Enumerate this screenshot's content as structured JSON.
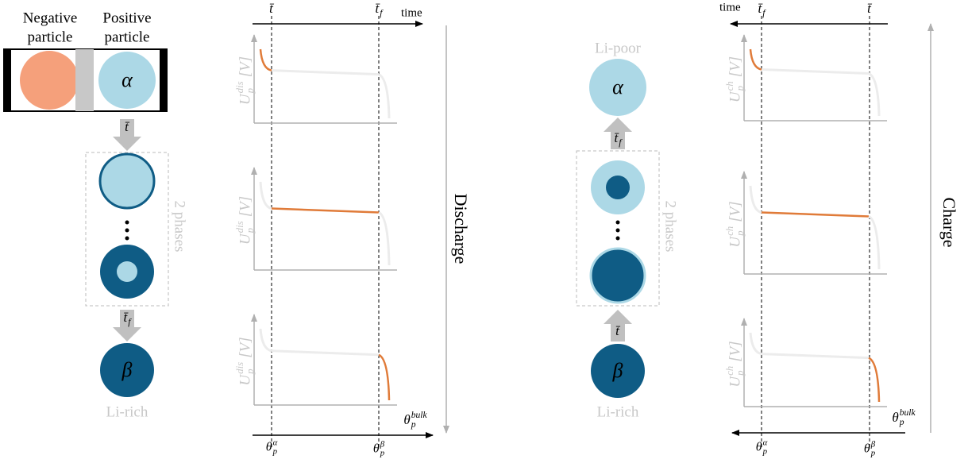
{
  "left": {
    "negative_label": [
      "Negative",
      "particle"
    ],
    "positive_label": [
      "Positive",
      "particle"
    ],
    "alpha": "α",
    "arrow_1": {
      "base": "t̄"
    },
    "phases": "2 phases",
    "arrow_2": {
      "base": "t̄",
      "sub": "f"
    },
    "beta": "β",
    "bottom_label": "Li-rich"
  },
  "discharge_plot": {
    "time": "time",
    "t_start": {
      "base": "t̄"
    },
    "t_end": {
      "base": "t̄",
      "sub": "f"
    },
    "y_labels": [
      {
        "base": "U",
        "sub": "p",
        "sup": "dis",
        "unit": "[V]"
      },
      {
        "base": "U",
        "sub": "p",
        "sup": "dis",
        "unit": "[V]"
      },
      {
        "base": "U",
        "sub": "p",
        "sup": "dis",
        "unit": "[V]"
      }
    ],
    "x_label": {
      "base": "θ",
      "sub": "p",
      "sup": "bulk"
    },
    "theta_alpha": {
      "base": "θ",
      "sub": "p",
      "sup": "α"
    },
    "theta_beta": {
      "base": "θ",
      "sub": "p",
      "sup": "β"
    },
    "direction": "Discharge"
  },
  "right": {
    "top_label": "Li-poor",
    "alpha": "α",
    "arrow_1": {
      "base": "t̄",
      "sub": "f"
    },
    "phases": "2 phases",
    "arrow_2": {
      "base": "t̄"
    },
    "beta": "β",
    "bottom_label": "Li-rich"
  },
  "charge_plot": {
    "time": "time",
    "t_start": {
      "base": "t̄",
      "sub": "f"
    },
    "t_end": {
      "base": "t̄"
    },
    "y_labels": [
      {
        "base": "U",
        "sub": "p",
        "sup": "ch",
        "unit": "[V]"
      },
      {
        "base": "U",
        "sub": "p",
        "sup": "ch",
        "unit": "[V]"
      },
      {
        "base": "U",
        "sub": "p",
        "sup": "ch",
        "unit": "[V]"
      }
    ],
    "x_label": {
      "base": "θ",
      "sub": "p",
      "sup": "bulk"
    },
    "theta_alpha": {
      "base": "θ",
      "sub": "p",
      "sup": "α"
    },
    "theta_beta": {
      "base": "θ",
      "sub": "p",
      "sup": "β"
    },
    "direction": "Charge"
  }
}
